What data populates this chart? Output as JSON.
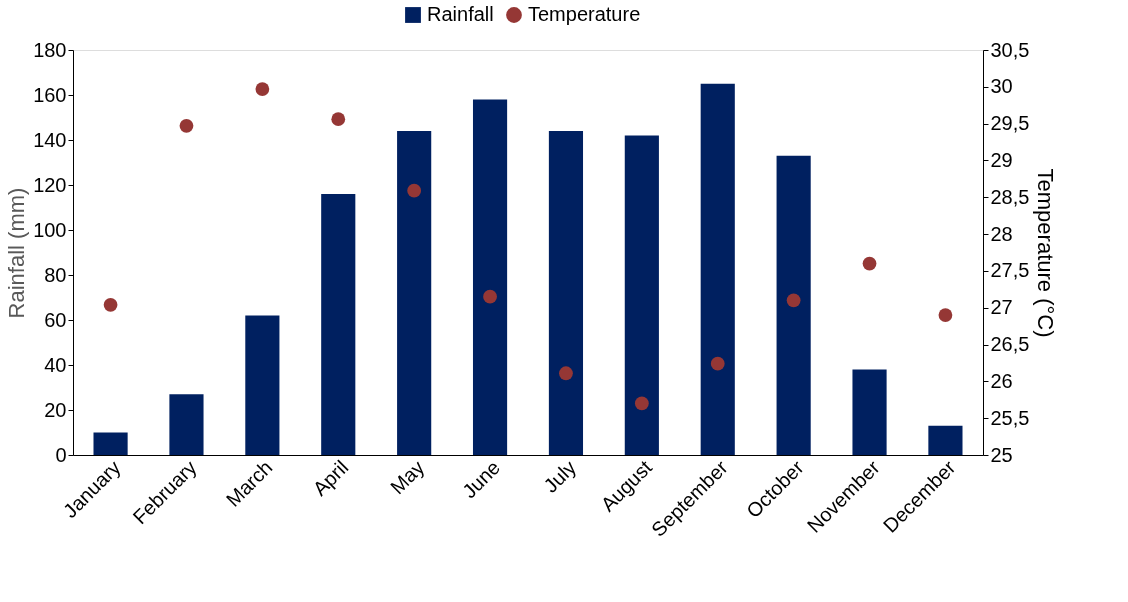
{
  "chart_data": {
    "type": "bar",
    "categories": [
      "January",
      "February",
      "March",
      "April",
      "May",
      "June",
      "July",
      "August",
      "September",
      "October",
      "November",
      "December"
    ],
    "series": [
      {
        "name": "Rainfall",
        "color": "#002060",
        "values": [
          10,
          27,
          62,
          116,
          144,
          158,
          144,
          142,
          165,
          133,
          38,
          13
        ]
      },
      {
        "name": "Temperature",
        "type": "scatter",
        "axis": "y2",
        "color": "#953735",
        "values": [
          27.04,
          29.47,
          29.97,
          29.56,
          28.59,
          27.15,
          26.11,
          25.7,
          26.24,
          27.1,
          27.6,
          26.9
        ]
      }
    ],
    "ylabel": "Rainfall (mm)",
    "y2label": "Temperature (°C)",
    "ylim": [
      0,
      180
    ],
    "yticks": [
      0,
      20,
      40,
      60,
      80,
      100,
      120,
      140,
      160,
      180
    ],
    "y2lim": [
      25,
      30.5
    ],
    "y2ticks": [
      25,
      {
        "value": 25.5,
        "label": "25,5"
      },
      26,
      {
        "value": 26.5,
        "label": "26,5"
      },
      27,
      {
        "value": 27.5,
        "label": "27,5"
      },
      28,
      {
        "value": 28.5,
        "label": "28,5"
      },
      29,
      {
        "value": 29.5,
        "label": "29,5"
      },
      30,
      {
        "value": 30.5,
        "label": "30,5"
      }
    ],
    "legend": "top",
    "grid": false,
    "marker": "circle"
  }
}
